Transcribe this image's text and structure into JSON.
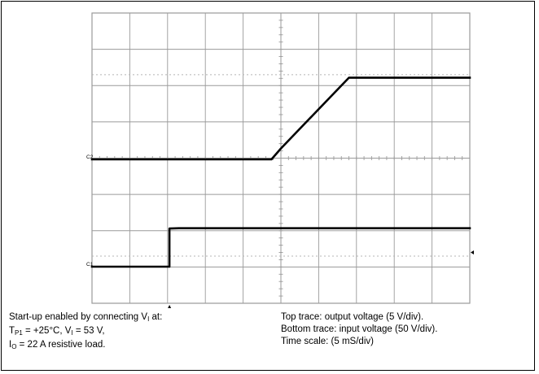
{
  "chart_data": {
    "type": "line",
    "grid": true,
    "divisions": {
      "x": 10,
      "y": 8
    },
    "channel_markers": [
      "C2",
      "C1"
    ],
    "series": [
      {
        "channel": "C2",
        "name": "Top trace: output voltage",
        "units_per_div": 5,
        "x": [
          0,
          4.75,
          5.0,
          6.8,
          10
        ],
        "y": [
          0,
          0,
          0.3,
          2.25,
          2.25
        ]
      },
      {
        "channel": "C1",
        "name": "Bottom trace: input voltage",
        "units_per_div": 50,
        "x": [
          0,
          2.05,
          2.05,
          2.3,
          10
        ],
        "y": [
          0,
          0,
          1.05,
          1.06,
          1.06
        ]
      }
    ]
  },
  "caption": {
    "left": {
      "line1_pre": "Start-up enabled by connecting V",
      "line1_sub": "I",
      "line1_post": " at:",
      "line2_a": "T",
      "line2_a_sub": "P1",
      "line2_b": " = +25°C, V",
      "line2_b_sub": "I",
      "line2_c": " =  53 V,",
      "line3_pre": "I",
      "line3_sub": "O",
      "line3_post": " = 22 A resistive load."
    },
    "right": {
      "line1": "Top trace: output voltage (5 V/div).",
      "line2": "Bottom trace: input voltage (50 V/div).",
      "line3": "Time scale: (5 mS/div)"
    }
  },
  "colors": {
    "grid": "#9a9a9a",
    "trace": "#000000",
    "frame": "#000000"
  }
}
